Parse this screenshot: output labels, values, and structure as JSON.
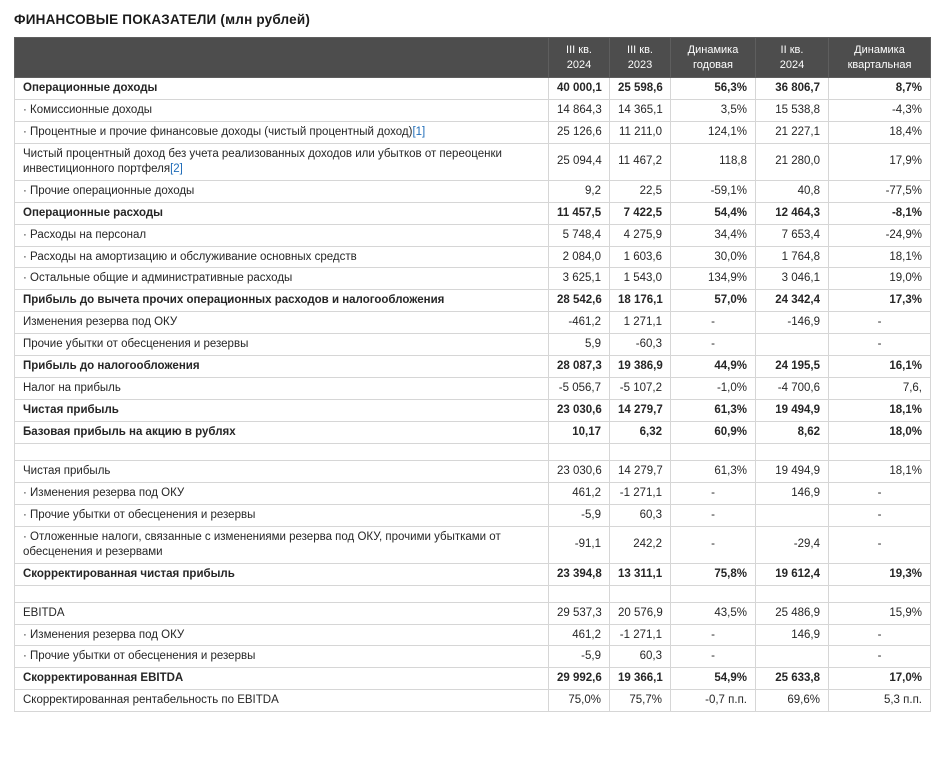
{
  "page_title": "ФИНАНСОВЫЕ ПОКАЗАТЕЛИ (млн рублей)",
  "colors": {
    "header_bg": "#4d4d4d",
    "header_text": "#ffffff",
    "border": "#d6d6d6",
    "footnote_link": "#1f6cb8"
  },
  "table": {
    "headers": [
      "",
      "III кв.\n2024",
      "III кв.\n2023",
      "Динамика\nгодовая",
      "II кв.\n2024",
      "Динамика\nквартальная"
    ],
    "rows": [
      {
        "label": "Операционные доходы",
        "bold": true,
        "values": [
          "40 000,1",
          "25 598,6",
          "56,3%",
          "36 806,7",
          "8,7%"
        ]
      },
      {
        "label": "· Комиссионные доходы",
        "bold": false,
        "values": [
          "14 864,3",
          "14 365,1",
          "3,5%",
          "15 538,8",
          "-4,3%"
        ]
      },
      {
        "label": "· Процентные и прочие финансовые доходы (чистый процентный доход)",
        "footnote": "[1]",
        "bold": false,
        "values": [
          "25 126,6",
          "11 211,0",
          "124,1%",
          "21 227,1",
          "18,4%"
        ]
      },
      {
        "label": "Чистый процентный доход без учета реализованных доходов или убытков от переоценки инвестиционного портфеля",
        "footnote": "[2]",
        "bold": false,
        "values": [
          "25 094,4",
          "11 467,2",
          "118,8",
          "21 280,0",
          "17,9%"
        ]
      },
      {
        "label": "· Прочие операционные доходы",
        "bold": false,
        "values": [
          "9,2",
          "22,5",
          "-59,1%",
          "40,8",
          "-77,5%"
        ]
      },
      {
        "label": "Операционные расходы",
        "bold": true,
        "values": [
          "11 457,5",
          "7 422,5",
          "54,4%",
          "12 464,3",
          "-8,1%"
        ]
      },
      {
        "label": "· Расходы на персонал",
        "bold": false,
        "values": [
          "5 748,4",
          "4 275,9",
          "34,4%",
          "7 653,4",
          "-24,9%"
        ]
      },
      {
        "label": "· Расходы на амортизацию и обслуживание основных средств",
        "bold": false,
        "values": [
          "2 084,0",
          "1 603,6",
          "30,0%",
          "1 764,8",
          "18,1%"
        ]
      },
      {
        "label": "· Остальные общие и административные расходы",
        "bold": false,
        "values": [
          "3 625,1",
          "1 543,0",
          "134,9%",
          "3 046,1",
          "19,0%"
        ]
      },
      {
        "label": "Прибыль до вычета прочих операционных расходов и налогообложения",
        "bold": true,
        "values": [
          "28 542,6",
          "18 176,1",
          "57,0%",
          "24 342,4",
          "17,3%"
        ]
      },
      {
        "label": "Изменения резерва под ОКУ",
        "bold": false,
        "values": [
          "-461,2",
          "1 271,1",
          "-",
          "-146,9",
          "-"
        ]
      },
      {
        "label": "Прочие убытки от обесценения и резервы",
        "bold": false,
        "values": [
          "5,9",
          "-60,3",
          "-",
          "",
          "-"
        ]
      },
      {
        "label": "Прибыль до налогообложения",
        "bold": true,
        "values": [
          "28 087,3",
          "19 386,9",
          "44,9%",
          "24 195,5",
          "16,1%"
        ]
      },
      {
        "label": "Налог на прибыль",
        "bold": false,
        "values": [
          "-5 056,7",
          "-5 107,2",
          "-1,0%",
          "-4 700,6",
          "7,6,"
        ]
      },
      {
        "label": "Чистая прибыль",
        "bold": true,
        "values": [
          "23 030,6",
          "14 279,7",
          "61,3%",
          "19 494,9",
          "18,1%"
        ]
      },
      {
        "label": "Базовая прибыль на акцию в рублях",
        "bold": true,
        "values": [
          "10,17",
          "6,32",
          "60,9%",
          "8,62",
          "18,0%"
        ]
      },
      {
        "label": "",
        "bold": false,
        "values": [
          "",
          "",
          "",
          "",
          ""
        ]
      },
      {
        "label": "Чистая прибыль",
        "bold": false,
        "values": [
          "23 030,6",
          "14 279,7",
          "61,3%",
          "19 494,9",
          "18,1%"
        ]
      },
      {
        "label": "· Изменения резерва под ОКУ",
        "bold": false,
        "values": [
          "461,2",
          "-1 271,1",
          "-",
          "146,9",
          "-"
        ]
      },
      {
        "label": "· Прочие убытки от обесценения и резервы",
        "bold": false,
        "values": [
          "-5,9",
          "60,3",
          "-",
          "",
          "-"
        ]
      },
      {
        "label": "· Отложенные налоги, связанные с изменениями резерва под ОКУ, прочими убытками от обесценения и резервами",
        "bold": false,
        "values": [
          "-91,1",
          "242,2",
          "-",
          "-29,4",
          "-"
        ]
      },
      {
        "label": "Скорректированная чистая прибыль",
        "bold": true,
        "values": [
          "23 394,8",
          "13 311,1",
          "75,8%",
          "19 612,4",
          "19,3%"
        ]
      },
      {
        "label": "",
        "bold": false,
        "values": [
          "",
          "",
          "",
          "",
          ""
        ]
      },
      {
        "label": "EBITDA",
        "bold": false,
        "values": [
          "29 537,3",
          "20 576,9",
          "43,5%",
          "25 486,9",
          "15,9%"
        ]
      },
      {
        "label": "· Изменения резерва под ОКУ",
        "bold": false,
        "values": [
          "461,2",
          "-1 271,1",
          "-",
          "146,9",
          "-"
        ]
      },
      {
        "label": "· Прочие убытки от обесценения и резервы",
        "bold": false,
        "values": [
          "-5,9",
          "60,3",
          "-",
          "",
          "-"
        ]
      },
      {
        "label": "Скорректированная EBITDA",
        "bold": true,
        "values": [
          "29 992,6",
          "19 366,1",
          "54,9%",
          "25 633,8",
          "17,0%"
        ]
      },
      {
        "label": "Скорректированная рентабельность по EBITDA",
        "bold": false,
        "values": [
          "75,0%",
          "75,7%",
          "-0,7 п.п.",
          "69,6%",
          "5,3 п.п."
        ]
      }
    ]
  }
}
